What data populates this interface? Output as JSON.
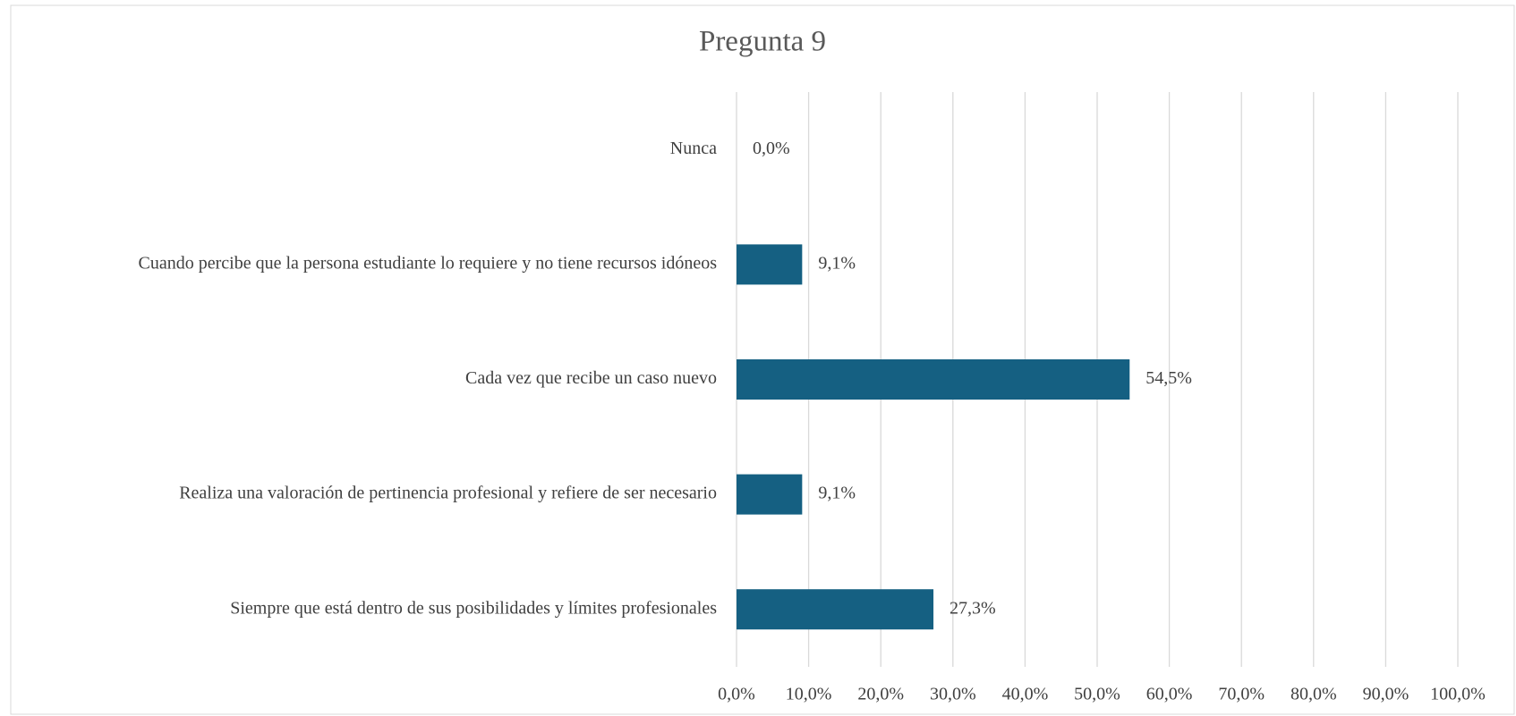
{
  "chart_data": {
    "type": "hbar",
    "title": "Pregunta 9",
    "categories": [
      "Nunca",
      "Cuando percibe que la persona estudiante lo requiere y no tiene recursos idóneos",
      "Cada vez que recibe un caso nuevo",
      "Realiza una valoración de pertinencia profesional y refiere de ser necesario",
      "Siempre que está dentro de sus posibilidades y límites profesionales"
    ],
    "values": [
      0,
      9.1,
      54.5,
      9.1,
      27.3
    ],
    "value_labels": [
      "0,0%",
      "9,1%",
      "54,5%",
      "9,1%",
      "27,3%"
    ],
    "color": "#156082",
    "xlim": [
      0,
      100
    ],
    "xticks": [
      {
        "value": 0,
        "label": "0,0%"
      },
      {
        "value": 10,
        "label": "10,0%"
      },
      {
        "value": 20,
        "label": "20,0%"
      },
      {
        "value": 30,
        "label": "30,0%"
      },
      {
        "value": 40,
        "label": "40,0%"
      },
      {
        "value": 50,
        "label": "50,0%"
      },
      {
        "value": 60,
        "label": "60,0%"
      },
      {
        "value": 70,
        "label": "70,0%"
      },
      {
        "value": 80,
        "label": "80,0%"
      },
      {
        "value": 90,
        "label": "90,0%"
      },
      {
        "value": 100,
        "label": "100,0%"
      }
    ],
    "grid": true
  }
}
